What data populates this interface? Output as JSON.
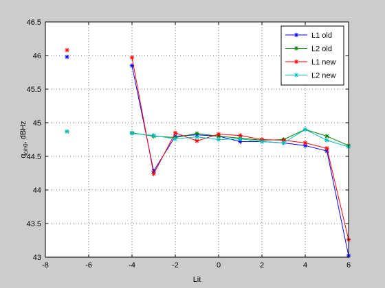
{
  "chart_data": {
    "type": "line",
    "xlabel": "Lit",
    "ylabel": "q",
    "ylabel_sub": "c/n0",
    "ylabel_suffix": ", dBHz",
    "xlim": [
      -8,
      6
    ],
    "ylim": [
      43,
      46.5
    ],
    "xticks": [
      -8,
      -6,
      -4,
      -2,
      0,
      2,
      4,
      6
    ],
    "xtick_labels": [
      "-8",
      "-6",
      "-4",
      "-2",
      "0",
      "2",
      "4",
      "6"
    ],
    "yticks": [
      43,
      43.5,
      44,
      44.5,
      45,
      45.5,
      46,
      46.5
    ],
    "ytick_labels": [
      "43",
      "43.5",
      "44",
      "44.5",
      "45",
      "45.5",
      "46",
      "46.5"
    ],
    "grid": true,
    "legend_position": "top-right",
    "series": [
      {
        "name": "L1 old",
        "color": "#0000ff",
        "x": [
          -7,
          -4,
          -3,
          -2,
          -1,
          0,
          1,
          2,
          3,
          4,
          5,
          6
        ],
        "y": [
          45.98,
          45.85,
          44.28,
          44.8,
          44.82,
          44.8,
          44.72,
          44.72,
          44.7,
          44.66,
          44.58,
          43.02
        ]
      },
      {
        "name": "L2 old",
        "color": "#008000",
        "x": [
          -7,
          -4,
          -3,
          -2,
          -1,
          0,
          1,
          2,
          3,
          4,
          5,
          6
        ],
        "y": [
          44.87,
          44.85,
          44.8,
          44.78,
          44.84,
          44.8,
          44.77,
          44.74,
          44.75,
          44.9,
          44.8,
          44.66
        ]
      },
      {
        "name": "L1 new",
        "color": "#ff0000",
        "x": [
          -7,
          -4,
          -3,
          -2,
          -1,
          0,
          1,
          2,
          3,
          4,
          5,
          6
        ],
        "y": [
          46.08,
          45.97,
          44.24,
          44.85,
          44.73,
          44.83,
          44.81,
          44.75,
          44.74,
          44.7,
          44.62,
          43.26
        ]
      },
      {
        "name": "L2 new",
        "color": "#00bfbf",
        "x": [
          -7,
          -4,
          -3,
          -2,
          -1,
          0,
          1,
          2,
          3,
          4,
          5,
          6
        ],
        "y": [
          44.87,
          44.84,
          44.81,
          44.76,
          44.79,
          44.75,
          44.76,
          44.72,
          44.7,
          44.9,
          44.74,
          44.64
        ]
      }
    ]
  }
}
